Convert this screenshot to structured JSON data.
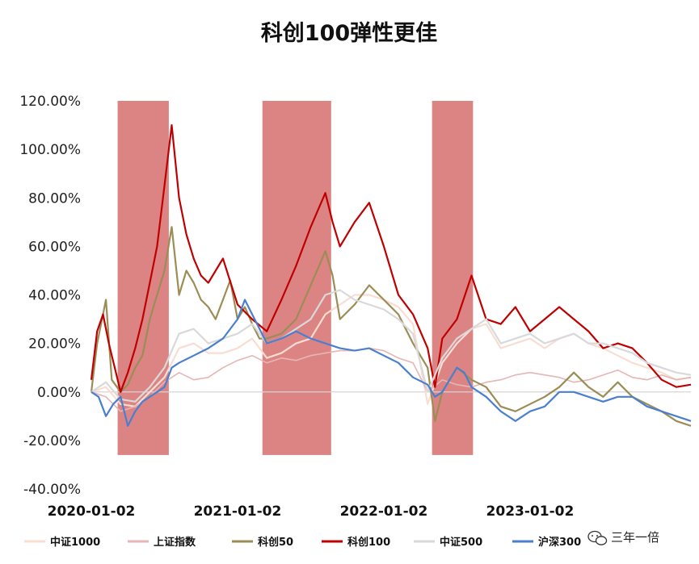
{
  "chart_data": {
    "type": "line",
    "title": "科创100弹性更佳",
    "xlabel": "",
    "ylabel": "",
    "ylim": [
      -0.4,
      1.2
    ],
    "yticks": [
      {
        "value": 1.2,
        "label": "120.00%"
      },
      {
        "value": 1.0,
        "label": "100.00%"
      },
      {
        "value": 0.8,
        "label": "80.00%"
      },
      {
        "value": 0.6,
        "label": "60.00%"
      },
      {
        "value": 0.4,
        "label": "40.00%"
      },
      {
        "value": 0.2,
        "label": "20.00%"
      },
      {
        "value": 0.0,
        "label": "0.00%"
      },
      {
        "value": -0.2,
        "label": "-20.00%"
      },
      {
        "value": -0.4,
        "label": "-40.00%"
      }
    ],
    "xlim": [
      0,
      4.1
    ],
    "xticks": [
      {
        "value": 0,
        "label": "2020-01-02"
      },
      {
        "value": 1,
        "label": "2021-01-02"
      },
      {
        "value": 2,
        "label": "2022-01-02"
      },
      {
        "value": 3,
        "label": "2023-01-02"
      }
    ],
    "highlight_periods": [
      {
        "start": 0.18,
        "end": 0.53
      },
      {
        "start": 1.17,
        "end": 1.64
      },
      {
        "start": 2.33,
        "end": 2.61
      }
    ],
    "highlight_color": "#dc8484",
    "series": [
      {
        "name": "中证1000",
        "color": "#f8ddd2",
        "width": 2.2,
        "x": [
          0,
          0.1,
          0.2,
          0.3,
          0.4,
          0.5,
          0.6,
          0.7,
          0.8,
          0.9,
          1.0,
          1.1,
          1.2,
          1.3,
          1.4,
          1.5,
          1.6,
          1.7,
          1.8,
          1.9,
          2.0,
          2.1,
          2.2,
          2.3,
          2.4,
          2.5,
          2.6,
          2.7,
          2.8,
          2.9,
          3.0,
          3.1,
          3.2,
          3.3,
          3.4,
          3.5,
          3.6,
          3.7,
          3.8,
          3.9,
          4.0,
          4.1
        ],
        "y": [
          0.0,
          0.02,
          -0.05,
          -0.06,
          0.0,
          0.06,
          0.18,
          0.2,
          0.16,
          0.16,
          0.18,
          0.22,
          0.14,
          0.16,
          0.2,
          0.22,
          0.32,
          0.36,
          0.4,
          0.4,
          0.38,
          0.35,
          0.28,
          -0.05,
          0.12,
          0.2,
          0.26,
          0.28,
          0.18,
          0.2,
          0.22,
          0.18,
          0.22,
          0.24,
          0.2,
          0.18,
          0.15,
          0.12,
          0.1,
          0.08,
          0.05,
          0.06
        ]
      },
      {
        "name": "上证指数",
        "color": "#e6b5b5",
        "width": 1.6,
        "x": [
          0,
          0.1,
          0.2,
          0.3,
          0.4,
          0.5,
          0.6,
          0.7,
          0.8,
          0.9,
          1.0,
          1.1,
          1.2,
          1.3,
          1.4,
          1.5,
          1.6,
          1.7,
          1.8,
          1.9,
          2.0,
          2.1,
          2.2,
          2.3,
          2.4,
          2.5,
          2.6,
          2.7,
          2.8,
          2.9,
          3.0,
          3.1,
          3.2,
          3.3,
          3.4,
          3.5,
          3.6,
          3.7,
          3.8,
          3.9,
          4.0,
          4.1
        ],
        "y": [
          0.0,
          -0.02,
          -0.08,
          -0.06,
          -0.02,
          0.04,
          0.08,
          0.05,
          0.06,
          0.1,
          0.13,
          0.15,
          0.12,
          0.14,
          0.13,
          0.15,
          0.16,
          0.17,
          0.17,
          0.18,
          0.17,
          0.14,
          0.12,
          0.0,
          0.05,
          0.03,
          0.02,
          0.04,
          0.05,
          0.07,
          0.08,
          0.07,
          0.06,
          0.04,
          0.05,
          0.07,
          0.09,
          0.06,
          0.05,
          0.07,
          0.05,
          0.06
        ]
      },
      {
        "name": "科创50",
        "color": "#9b8d56",
        "width": 2.2,
        "x": [
          0,
          0.04,
          0.1,
          0.14,
          0.2,
          0.25,
          0.3,
          0.35,
          0.4,
          0.45,
          0.5,
          0.55,
          0.6,
          0.65,
          0.7,
          0.75,
          0.8,
          0.85,
          0.9,
          0.95,
          1.0,
          1.05,
          1.1,
          1.15,
          1.2,
          1.3,
          1.4,
          1.5,
          1.6,
          1.65,
          1.7,
          1.8,
          1.9,
          2.0,
          2.1,
          2.2,
          2.3,
          2.35,
          2.4,
          2.45,
          2.5,
          2.6,
          2.7,
          2.8,
          2.9,
          3.0,
          3.1,
          3.2,
          3.3,
          3.4,
          3.5,
          3.6,
          3.7,
          3.8,
          3.9,
          4.0,
          4.1
        ],
        "y": [
          0.0,
          0.2,
          0.38,
          0.05,
          0.0,
          0.03,
          0.1,
          0.15,
          0.3,
          0.4,
          0.5,
          0.68,
          0.4,
          0.5,
          0.45,
          0.38,
          0.35,
          0.3,
          0.38,
          0.46,
          0.3,
          0.35,
          0.28,
          0.22,
          0.22,
          0.24,
          0.3,
          0.44,
          0.58,
          0.48,
          0.3,
          0.36,
          0.44,
          0.38,
          0.32,
          0.2,
          0.1,
          -0.12,
          0.0,
          0.05,
          0.1,
          0.05,
          0.02,
          -0.06,
          -0.08,
          -0.05,
          -0.02,
          0.02,
          0.08,
          0.02,
          -0.02,
          0.04,
          -0.02,
          -0.05,
          -0.08,
          -0.12,
          -0.14
        ]
      },
      {
        "name": "科创100",
        "color": "#c00000",
        "width": 2.2,
        "x": [
          0,
          0.04,
          0.08,
          0.12,
          0.16,
          0.2,
          0.25,
          0.3,
          0.35,
          0.4,
          0.45,
          0.5,
          0.55,
          0.6,
          0.65,
          0.7,
          0.75,
          0.8,
          0.9,
          1.0,
          1.1,
          1.2,
          1.3,
          1.4,
          1.5,
          1.55,
          1.6,
          1.65,
          1.7,
          1.8,
          1.9,
          2.0,
          2.1,
          2.2,
          2.3,
          2.35,
          2.4,
          2.5,
          2.6,
          2.7,
          2.8,
          2.9,
          3.0,
          3.1,
          3.2,
          3.3,
          3.4,
          3.5,
          3.6,
          3.7,
          3.8,
          3.9,
          4.0,
          4.1
        ],
        "y": [
          0.05,
          0.25,
          0.32,
          0.2,
          0.1,
          0.0,
          0.08,
          0.18,
          0.3,
          0.45,
          0.6,
          0.85,
          1.1,
          0.8,
          0.65,
          0.55,
          0.48,
          0.45,
          0.55,
          0.36,
          0.3,
          0.25,
          0.38,
          0.52,
          0.68,
          0.75,
          0.82,
          0.7,
          0.6,
          0.7,
          0.78,
          0.6,
          0.4,
          0.32,
          0.18,
          0.02,
          0.22,
          0.3,
          0.48,
          0.3,
          0.28,
          0.35,
          0.25,
          0.3,
          0.35,
          0.3,
          0.25,
          0.18,
          0.2,
          0.18,
          0.12,
          0.05,
          0.02,
          0.03
        ]
      },
      {
        "name": "中证500",
        "color": "#d9d9d9",
        "width": 2.2,
        "x": [
          0,
          0.1,
          0.2,
          0.3,
          0.4,
          0.5,
          0.6,
          0.7,
          0.8,
          0.9,
          1.0,
          1.1,
          1.2,
          1.3,
          1.4,
          1.5,
          1.6,
          1.7,
          1.8,
          1.9,
          2.0,
          2.1,
          2.2,
          2.3,
          2.4,
          2.5,
          2.6,
          2.7,
          2.8,
          2.9,
          3.0,
          3.1,
          3.2,
          3.3,
          3.4,
          3.5,
          3.6,
          3.7,
          3.8,
          3.9,
          4.0,
          4.1
        ],
        "y": [
          0.0,
          0.04,
          -0.03,
          -0.04,
          0.02,
          0.1,
          0.24,
          0.26,
          0.2,
          0.22,
          0.24,
          0.28,
          0.2,
          0.22,
          0.26,
          0.3,
          0.4,
          0.42,
          0.38,
          0.36,
          0.34,
          0.3,
          0.24,
          0.0,
          0.14,
          0.22,
          0.26,
          0.3,
          0.2,
          0.22,
          0.24,
          0.2,
          0.22,
          0.24,
          0.2,
          0.2,
          0.18,
          0.16,
          0.12,
          0.1,
          0.08,
          0.07
        ]
      },
      {
        "name": "沪深300",
        "color": "#4a7fcf",
        "width": 2.2,
        "x": [
          0,
          0.05,
          0.1,
          0.15,
          0.2,
          0.25,
          0.3,
          0.35,
          0.4,
          0.45,
          0.5,
          0.55,
          0.6,
          0.7,
          0.8,
          0.9,
          1.0,
          1.05,
          1.1,
          1.2,
          1.3,
          1.4,
          1.5,
          1.6,
          1.7,
          1.8,
          1.9,
          2.0,
          2.1,
          2.2,
          2.3,
          2.35,
          2.4,
          2.45,
          2.5,
          2.55,
          2.6,
          2.7,
          2.8,
          2.9,
          3.0,
          3.1,
          3.2,
          3.3,
          3.4,
          3.5,
          3.6,
          3.7,
          3.8,
          3.9,
          4.0,
          4.1
        ],
        "y": [
          0.0,
          -0.02,
          -0.1,
          -0.05,
          -0.02,
          -0.14,
          -0.08,
          -0.04,
          -0.02,
          0.0,
          0.02,
          0.1,
          0.12,
          0.15,
          0.18,
          0.22,
          0.3,
          0.38,
          0.32,
          0.2,
          0.22,
          0.25,
          0.22,
          0.2,
          0.18,
          0.17,
          0.18,
          0.15,
          0.12,
          0.06,
          0.03,
          -0.02,
          0.0,
          0.05,
          0.1,
          0.08,
          0.02,
          -0.02,
          -0.08,
          -0.12,
          -0.08,
          -0.06,
          0.0,
          0.0,
          -0.02,
          -0.04,
          -0.02,
          -0.02,
          -0.06,
          -0.08,
          -0.1,
          -0.12
        ]
      }
    ]
  },
  "legend": [
    {
      "label": "中证1000",
      "color": "#f8ddd2"
    },
    {
      "label": "上证指数",
      "color": "#e6b5b5"
    },
    {
      "label": "科创50",
      "color": "#9b8d56"
    },
    {
      "label": "科创100",
      "color": "#c00000"
    },
    {
      "label": "中证500",
      "color": "#d9d9d9"
    },
    {
      "label": "沪深300",
      "color": "#4a7fcf"
    }
  ],
  "watermark": {
    "text": "三年一倍",
    "icon": "wechat-icon"
  }
}
